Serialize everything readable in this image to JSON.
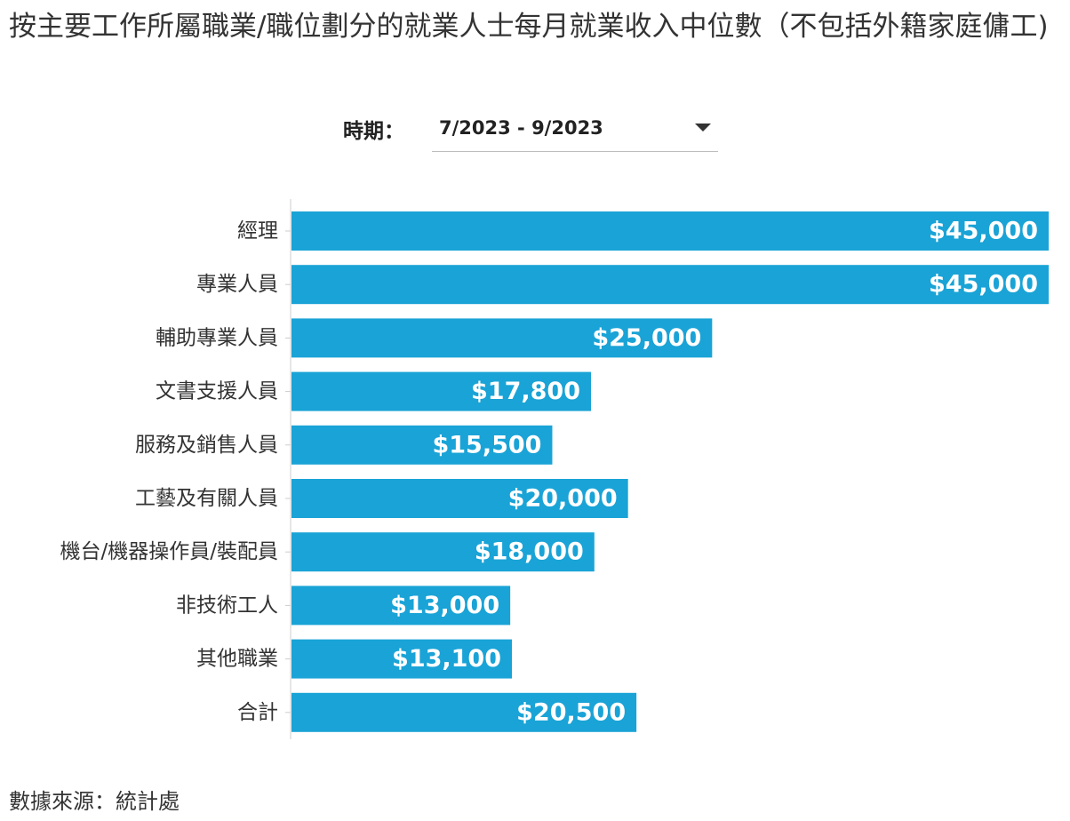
{
  "title": "按主要工作所屬職業/職位劃分的就業人士每月就業收入中位數（不包括外籍家庭傭工)",
  "filter": {
    "label": "時期：",
    "selected": "7/2023 - 9/2023"
  },
  "source": "數據來源：統計處",
  "colors": {
    "bar": "#1aa3d6",
    "value_label": "#ffffff",
    "axis": "#cccccc"
  },
  "chart_data": {
    "type": "bar",
    "orientation": "horizontal",
    "title": "按主要工作所屬職業/職位劃分的就業人士每月就業收入中位數（不包括外籍家庭傭工)",
    "xlabel": "",
    "ylabel": "",
    "xlim": [
      0,
      45000
    ],
    "grid": false,
    "categories": [
      "經理",
      "專業人員",
      "輔助專業人員",
      "文書支援人員",
      "服務及銷售人員",
      "工藝及有關人員",
      "機台/機器操作員/裝配員",
      "非技術工人",
      "其他職業",
      "合計"
    ],
    "values": [
      45000,
      45000,
      25000,
      17800,
      15500,
      20000,
      18000,
      13000,
      13100,
      20500
    ],
    "value_labels": [
      "$45,000",
      "$45,000",
      "$25,000",
      "$17,800",
      "$15,500",
      "$20,000",
      "$18,000",
      "$13,000",
      "$13,100",
      "$20,500"
    ]
  }
}
